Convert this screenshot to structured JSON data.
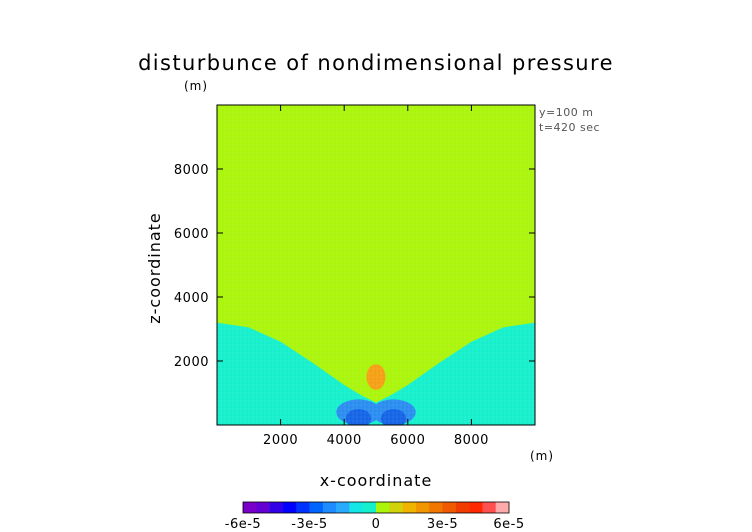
{
  "chart_data": {
    "type": "heatmap",
    "title": "disturbunce of nondimensional pressure",
    "xlabel": "x-coordinate",
    "ylabel": "z-coordinate",
    "x_unit": "(m)",
    "y_unit": "(m)",
    "annotations": [
      "y=100 m",
      "t=420 sec"
    ],
    "xlim": [
      0,
      10000
    ],
    "ylim": [
      0,
      10000
    ],
    "x_ticks": [
      2000,
      4000,
      6000,
      8000
    ],
    "x_tick_labels": [
      "2000",
      "4000",
      "6000",
      "8000"
    ],
    "y_ticks": [
      2000,
      4000,
      6000,
      8000
    ],
    "y_tick_labels": [
      "2000",
      "4000",
      "6000",
      "8000"
    ],
    "grid": false,
    "background_level_color": "#aaf50a",
    "regions": [
      {
        "name": "upper-field",
        "value_range": [
          0,
          3e-06
        ],
        "color": "#aaf50a"
      },
      {
        "name": "lower-field",
        "value_range": [
          -6e-06,
          0
        ],
        "color": "#14f0cc",
        "boundary_x": [
          0,
          1000,
          2000,
          3000,
          4000,
          4500,
          5000,
          5500,
          6000,
          7000,
          8000,
          9000,
          10000
        ],
        "boundary_z": [
          3200,
          3050,
          2600,
          1950,
          1250,
          950,
          700,
          950,
          1250,
          1950,
          2600,
          3050,
          3200
        ]
      },
      {
        "name": "positive-cell",
        "value_range": [
          1.2e-05,
          1.8e-05
        ],
        "color": "#f5a014",
        "center": [
          5000,
          1500
        ],
        "radius": [
          300,
          400
        ]
      },
      {
        "name": "negative-cell-outer",
        "value_range": [
          -1.8e-05,
          -1.2e-05
        ],
        "color": "#2a8cf0",
        "centers": [
          [
            4450,
            400
          ],
          [
            5550,
            400
          ]
        ],
        "radius": [
          700,
          400
        ]
      },
      {
        "name": "negative-cell-inner",
        "value_range": [
          -3e-05,
          -1.8e-05
        ],
        "color": "#1464e6",
        "centers": [
          [
            4450,
            200
          ],
          [
            5550,
            200
          ]
        ],
        "radius": [
          400,
          300
        ]
      }
    ],
    "colorbar": {
      "range": [
        -6e-05,
        6e-05
      ],
      "levels": [
        "#7800c8",
        "#6400d2",
        "#3200e6",
        "#0000ff",
        "#0032ff",
        "#0064ff",
        "#1e8cff",
        "#28aaff",
        "#14e6e6",
        "#14f0cc",
        "#aaf50a",
        "#d2d20a",
        "#f0b400",
        "#f09600",
        "#f07800",
        "#f05a00",
        "#f03c00",
        "#ff2800",
        "#ff5050",
        "#ffaaaa"
      ],
      "tick_labels": [
        "-6e-5",
        "-3e-5",
        "0",
        "3e-5",
        "6e-5"
      ],
      "tick_values": [
        -6e-05,
        -3e-05,
        0,
        3e-05,
        6e-05
      ]
    }
  }
}
